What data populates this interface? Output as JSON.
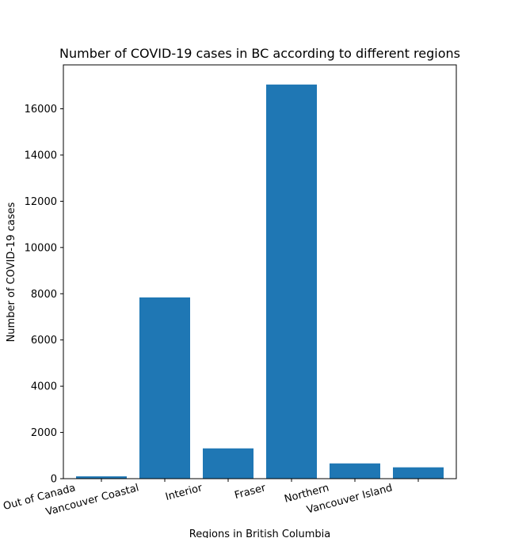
{
  "chart_data": {
    "type": "bar",
    "title": "Number of COVID-19 cases in BC according to different regions",
    "xlabel": "Regions in British Columbia",
    "ylabel": "Number of COVID-19 cases",
    "categories": [
      "Out of Canada",
      "Vancouver Coastal",
      "Interior",
      "Fraser",
      "Northern",
      "Vancouver Island"
    ],
    "values": [
      100,
      7840,
      1310,
      17050,
      660,
      490
    ],
    "ylim": [
      0,
      17900
    ],
    "yticks": [
      0,
      2000,
      4000,
      6000,
      8000,
      10000,
      12000,
      14000,
      16000
    ],
    "bar_color": "#1f77b4",
    "grid": false,
    "legend": "none"
  }
}
